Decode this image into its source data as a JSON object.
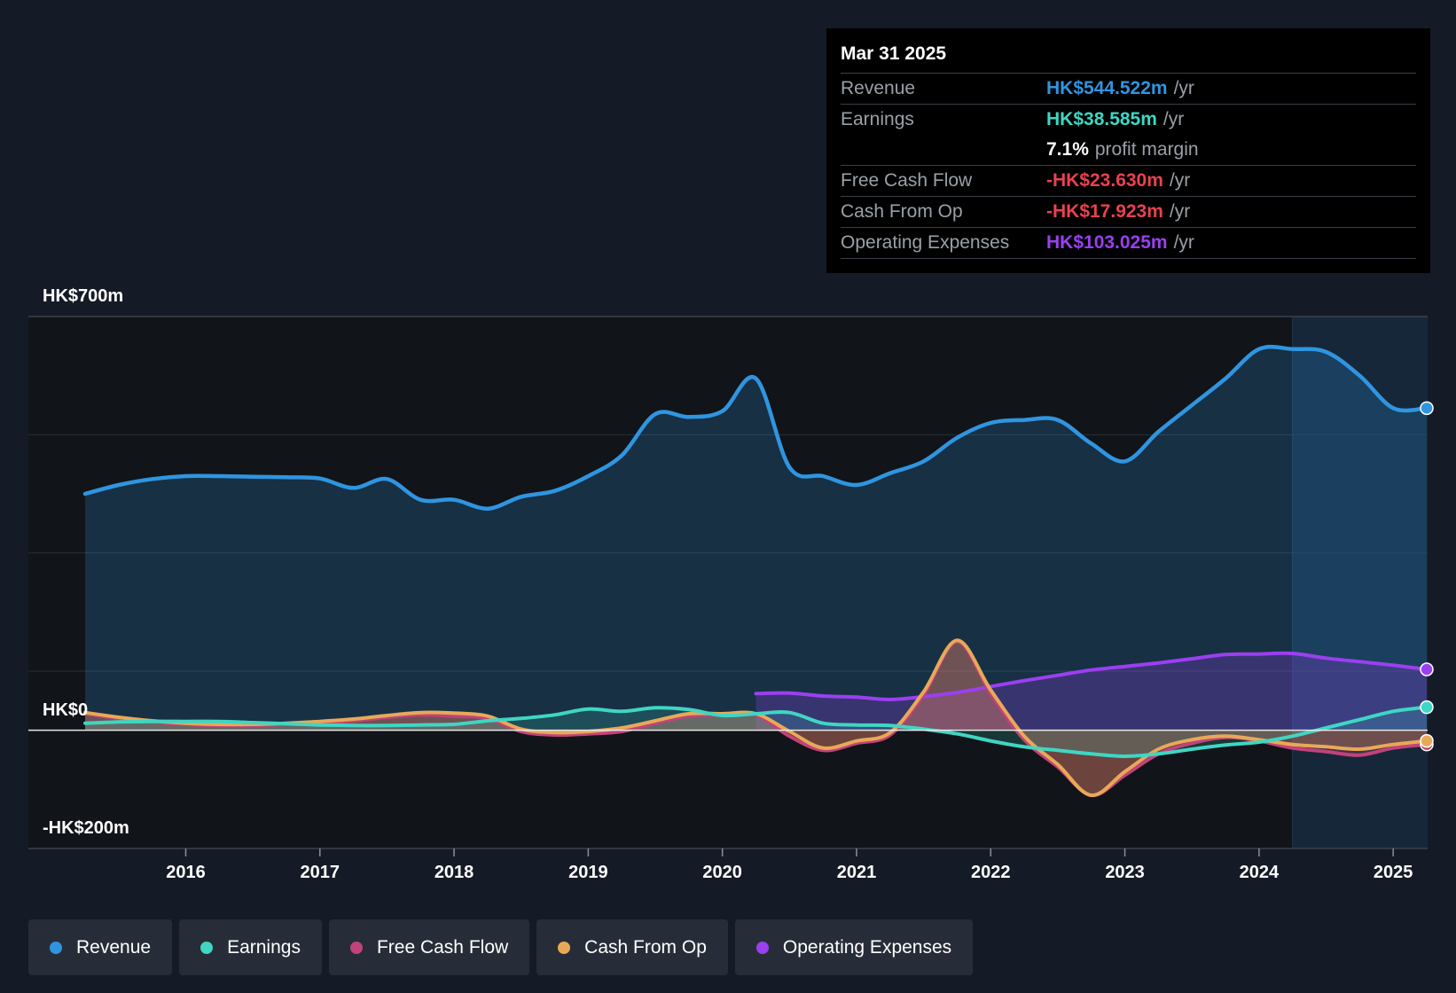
{
  "chart_data": {
    "type": "line",
    "currency": "HK$",
    "y_axis": {
      "top_label": "HK$700m",
      "zero_label": "HK$0",
      "bottom_label": "-HK$200m",
      "ylim": [
        -200,
        700
      ],
      "gridlines": [
        500,
        300,
        100
      ]
    },
    "x_axis": {
      "ticks": [
        "2016",
        "2017",
        "2018",
        "2019",
        "2020",
        "2021",
        "2022",
        "2023",
        "2024",
        "2025"
      ],
      "xlim": [
        2015.25,
        2025.25
      ]
    },
    "highlight_range": [
      2024.25,
      2025.25
    ],
    "series": [
      {
        "name": "Revenue",
        "color": "#2f95e0",
        "fill": true,
        "x": [
          2015.25,
          2015.5,
          2015.75,
          2016.0,
          2016.25,
          2016.5,
          2016.75,
          2017.0,
          2017.25,
          2017.5,
          2017.75,
          2018.0,
          2018.25,
          2018.5,
          2018.75,
          2019.0,
          2019.25,
          2019.5,
          2019.75,
          2020.0,
          2020.25,
          2020.5,
          2020.75,
          2021.0,
          2021.25,
          2021.5,
          2021.75,
          2022.0,
          2022.25,
          2022.5,
          2022.75,
          2023.0,
          2023.25,
          2023.5,
          2023.75,
          2024.0,
          2024.25,
          2024.5,
          2024.75,
          2025.0,
          2025.25
        ],
        "values": [
          400,
          415,
          425,
          430,
          430,
          429,
          428,
          426,
          410,
          425,
          390,
          390,
          375,
          395,
          405,
          430,
          465,
          535,
          530,
          540,
          595,
          445,
          430,
          415,
          435,
          455,
          495,
          520,
          525,
          525,
          485,
          455,
          505,
          550,
          595,
          645,
          645,
          640,
          600,
          545,
          545
        ],
        "end_value": 544.522
      },
      {
        "name": "Earnings",
        "color": "#3fd6c3",
        "fill": true,
        "x": [
          2015.25,
          2015.5,
          2015.75,
          2016.0,
          2016.25,
          2016.5,
          2016.75,
          2017.0,
          2017.25,
          2017.5,
          2017.75,
          2018.0,
          2018.25,
          2018.5,
          2018.75,
          2019.0,
          2019.25,
          2019.5,
          2019.75,
          2020.0,
          2020.25,
          2020.5,
          2020.75,
          2021.0,
          2021.25,
          2021.5,
          2021.75,
          2022.0,
          2022.25,
          2022.5,
          2022.75,
          2023.0,
          2023.25,
          2023.5,
          2023.75,
          2024.0,
          2024.25,
          2024.5,
          2024.75,
          2025.0,
          2025.25
        ],
        "values": [
          12,
          14,
          15,
          15,
          15,
          13,
          11,
          9,
          8,
          8,
          9,
          10,
          16,
          20,
          26,
          36,
          32,
          38,
          35,
          25,
          28,
          30,
          12,
          9,
          8,
          2,
          -6,
          -18,
          -28,
          -34,
          -40,
          -44,
          -40,
          -32,
          -25,
          -20,
          -10,
          4,
          18,
          32,
          39
        ],
        "end_value": 38.585
      },
      {
        "name": "Free Cash Flow",
        "color": "#c2427a",
        "fill": true,
        "x": [
          2015.25,
          2015.5,
          2015.75,
          2016.0,
          2016.25,
          2016.5,
          2016.75,
          2017.0,
          2017.25,
          2017.5,
          2017.75,
          2018.0,
          2018.25,
          2018.5,
          2018.75,
          2019.0,
          2019.25,
          2019.5,
          2019.75,
          2020.0,
          2020.25,
          2020.5,
          2020.75,
          2021.0,
          2021.25,
          2021.5,
          2021.75,
          2022.0,
          2022.25,
          2022.5,
          2022.75,
          2023.0,
          2023.25,
          2023.5,
          2023.75,
          2024.0,
          2024.25,
          2024.5,
          2024.75,
          2025.0,
          2025.25
        ],
        "values": [
          28,
          20,
          14,
          10,
          8,
          8,
          10,
          12,
          16,
          22,
          26,
          24,
          20,
          -2,
          -8,
          -6,
          -2,
          12,
          24,
          26,
          26,
          -10,
          -34,
          -22,
          -8,
          60,
          150,
          62,
          -16,
          -62,
          -110,
          -76,
          -40,
          -22,
          -12,
          -18,
          -30,
          -36,
          -42,
          -30,
          -24
        ],
        "end_value": -23.63
      },
      {
        "name": "Cash From Op",
        "color": "#e8a957",
        "fill": true,
        "x": [
          2015.25,
          2015.5,
          2015.75,
          2016.0,
          2016.25,
          2016.5,
          2016.75,
          2017.0,
          2017.25,
          2017.5,
          2017.75,
          2018.0,
          2018.25,
          2018.5,
          2018.75,
          2019.0,
          2019.25,
          2019.5,
          2019.75,
          2020.0,
          2020.25,
          2020.5,
          2020.75,
          2021.0,
          2021.25,
          2021.5,
          2021.75,
          2022.0,
          2022.25,
          2022.5,
          2022.75,
          2023.0,
          2023.25,
          2023.5,
          2023.75,
          2024.0,
          2024.25,
          2024.5,
          2024.75,
          2025.0,
          2025.25
        ],
        "values": [
          30,
          22,
          16,
          12,
          10,
          10,
          12,
          15,
          19,
          25,
          30,
          29,
          24,
          2,
          -4,
          -2,
          4,
          16,
          28,
          28,
          28,
          -2,
          -30,
          -18,
          -4,
          65,
          152,
          68,
          -10,
          -58,
          -110,
          -70,
          -32,
          -16,
          -10,
          -16,
          -24,
          -28,
          -32,
          -24,
          -18
        ],
        "end_value": -17.923
      },
      {
        "name": "Operating Expenses",
        "color": "#9b3ff0",
        "fill": true,
        "x": [
          2020.25,
          2020.5,
          2020.75,
          2021.0,
          2021.25,
          2021.5,
          2021.75,
          2022.0,
          2022.25,
          2022.5,
          2022.75,
          2023.0,
          2023.25,
          2023.5,
          2023.75,
          2024.0,
          2024.25,
          2024.5,
          2024.75,
          2025.0,
          2025.25
        ],
        "values": [
          62,
          63,
          58,
          56,
          52,
          57,
          64,
          74,
          84,
          93,
          102,
          108,
          114,
          121,
          128,
          129,
          130,
          122,
          116,
          110,
          103
        ],
        "end_value": 103.025
      }
    ],
    "tooltip": {
      "date": "Mar 31 2025",
      "rows": [
        {
          "label": "Revenue",
          "value": "HK$544.522m",
          "unit": "/yr",
          "color": "#2f95e0"
        },
        {
          "label": "Earnings",
          "value": "HK$38.585m",
          "unit": "/yr",
          "color": "#3fd6c3"
        },
        {
          "label": "",
          "value": "7.1%",
          "unit": "profit margin",
          "color": "#ffffff"
        },
        {
          "label": "Free Cash Flow",
          "value": "-HK$23.630m",
          "unit": "/yr",
          "color": "#e8424f"
        },
        {
          "label": "Cash From Op",
          "value": "-HK$17.923m",
          "unit": "/yr",
          "color": "#e8424f"
        },
        {
          "label": "Operating Expenses",
          "value": "HK$103.025m",
          "unit": "/yr",
          "color": "#9b3ff0"
        }
      ]
    },
    "legend": [
      {
        "name": "Revenue",
        "color": "#2f95e0"
      },
      {
        "name": "Earnings",
        "color": "#3fd6c3"
      },
      {
        "name": "Free Cash Flow",
        "color": "#c2427a"
      },
      {
        "name": "Cash From Op",
        "color": "#e8a957"
      },
      {
        "name": "Operating Expenses",
        "color": "#9b3ff0"
      }
    ]
  }
}
